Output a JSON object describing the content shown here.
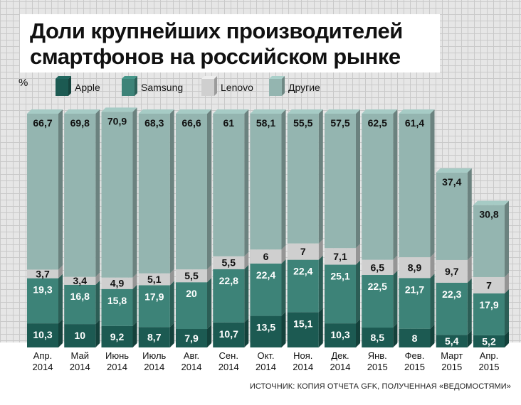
{
  "title": "Доли крупнейших производителей смартфонов на российском рынке",
  "source": "ИСТОЧНИК: КОПИЯ ОТЧЕТА GFK, ПОЛУЧЕННАЯ «ВЕДОМОСТЯМИ»",
  "chart_data": {
    "type": "bar",
    "stacked": true,
    "unit": "%",
    "legend_position": "top",
    "categories": [
      [
        "Апр.",
        "2014"
      ],
      [
        "Май",
        "2014"
      ],
      [
        "Июнь",
        "2014"
      ],
      [
        "Июль",
        "2014"
      ],
      [
        "Авг.",
        "2014"
      ],
      [
        "Сен.",
        "2014"
      ],
      [
        "Окт.",
        "2014"
      ],
      [
        "Ноя.",
        "2014"
      ],
      [
        "Дек.",
        "2014"
      ],
      [
        "Янв.",
        "2015"
      ],
      [
        "Фев.",
        "2015"
      ],
      [
        "Март",
        "2015"
      ],
      [
        "Апр.",
        "2015"
      ]
    ],
    "series": [
      {
        "name": "Apple",
        "color": "#1c5a52",
        "values": [
          10.3,
          10,
          9.2,
          8.7,
          7.9,
          10.7,
          13.5,
          15.1,
          10.3,
          8.5,
          8,
          5.4,
          5.2
        ],
        "labels": [
          "10,3",
          "10",
          "9,2",
          "8,7",
          "7,9",
          "10,7",
          "13,5",
          "15,1",
          "10,3",
          "8,5",
          "8",
          "5,4",
          "5,2"
        ]
      },
      {
        "name": "Samsung",
        "color": "#3d8378",
        "values": [
          19.3,
          16.8,
          15.8,
          17.9,
          20,
          22.8,
          22.4,
          22.4,
          25.1,
          22.5,
          21.7,
          22.3,
          17.9
        ],
        "labels": [
          "19,3",
          "16,8",
          "15,8",
          "17,9",
          "20",
          "22,8",
          "22,4",
          "22,4",
          "25,1",
          "22,5",
          "21,7",
          "22,3",
          "17,9"
        ]
      },
      {
        "name": "Lenovo",
        "color": "#cfcfcf",
        "values": [
          3.7,
          3.4,
          4.9,
          5.1,
          5.5,
          5.5,
          6,
          7,
          7.1,
          6.5,
          8.9,
          9.7,
          7
        ],
        "labels": [
          "3,7",
          "3,4",
          "4,9",
          "5,1",
          "5,5",
          "5,5",
          "6",
          "7",
          "7,1",
          "6,5",
          "8,9",
          "9,7",
          "7"
        ]
      },
      {
        "name": "Другие",
        "color": "#94b5b0",
        "values": [
          66.7,
          69.8,
          70.9,
          68.3,
          66.6,
          61,
          58.1,
          55.5,
          57.5,
          62.5,
          61.4,
          37.4,
          30.8
        ],
        "labels": [
          "66,7",
          "69,8",
          "70,9",
          "68,3",
          "66,6",
          "61",
          "58,1",
          "55,5",
          "57,5",
          "62,5",
          "61,4",
          "37,4",
          "30,8"
        ]
      }
    ]
  }
}
